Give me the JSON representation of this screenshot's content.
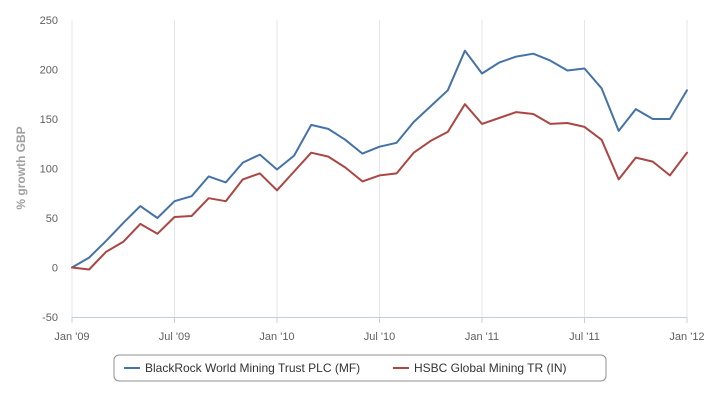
{
  "chart_data": {
    "type": "line",
    "ylabel": "% growth GBP",
    "xlabel": "",
    "title": "",
    "ylim": [
      -50,
      250
    ],
    "yticks": [
      -50,
      0,
      50,
      100,
      150,
      200,
      250
    ],
    "xlim": [
      0,
      36
    ],
    "xtick_positions": [
      0,
      6,
      12,
      18,
      24,
      30,
      36
    ],
    "xtick_labels": [
      "Jan '09",
      "Jul '09",
      "Jan '10",
      "Jul '10",
      "Jan '11",
      "Jul '11",
      "Jan '12"
    ],
    "grid": "vertical",
    "legend_position": "bottom",
    "x": [
      0,
      1,
      2,
      3,
      4,
      5,
      6,
      7,
      8,
      9,
      10,
      11,
      12,
      13,
      14,
      15,
      16,
      17,
      18,
      19,
      20,
      21,
      22,
      23,
      24,
      25,
      26,
      27,
      28,
      29,
      30,
      31,
      32,
      33,
      34,
      35,
      36
    ],
    "series": [
      {
        "name": "BlackRock World Mining Trust PLC (MF)",
        "color": "#4572a7",
        "values": [
          0,
          10,
          27,
          45,
          62,
          50,
          67,
          72,
          92,
          86,
          106,
          114,
          99,
          113,
          144,
          140,
          129,
          115,
          122,
          126,
          147,
          163,
          179,
          219,
          196,
          207,
          213,
          216,
          209,
          199,
          201,
          181,
          138,
          160,
          150,
          150,
          179
        ]
      },
      {
        "name": "HSBC Global Mining TR (IN)",
        "color": "#aa4643",
        "values": [
          0,
          -2,
          16,
          26,
          44,
          34,
          51,
          52,
          70,
          67,
          89,
          95,
          78,
          97,
          116,
          112,
          101,
          87,
          93,
          95,
          116,
          128,
          137,
          165,
          145,
          151,
          157,
          155,
          145,
          146,
          142,
          129,
          89,
          111,
          107,
          93,
          116
        ]
      }
    ]
  }
}
